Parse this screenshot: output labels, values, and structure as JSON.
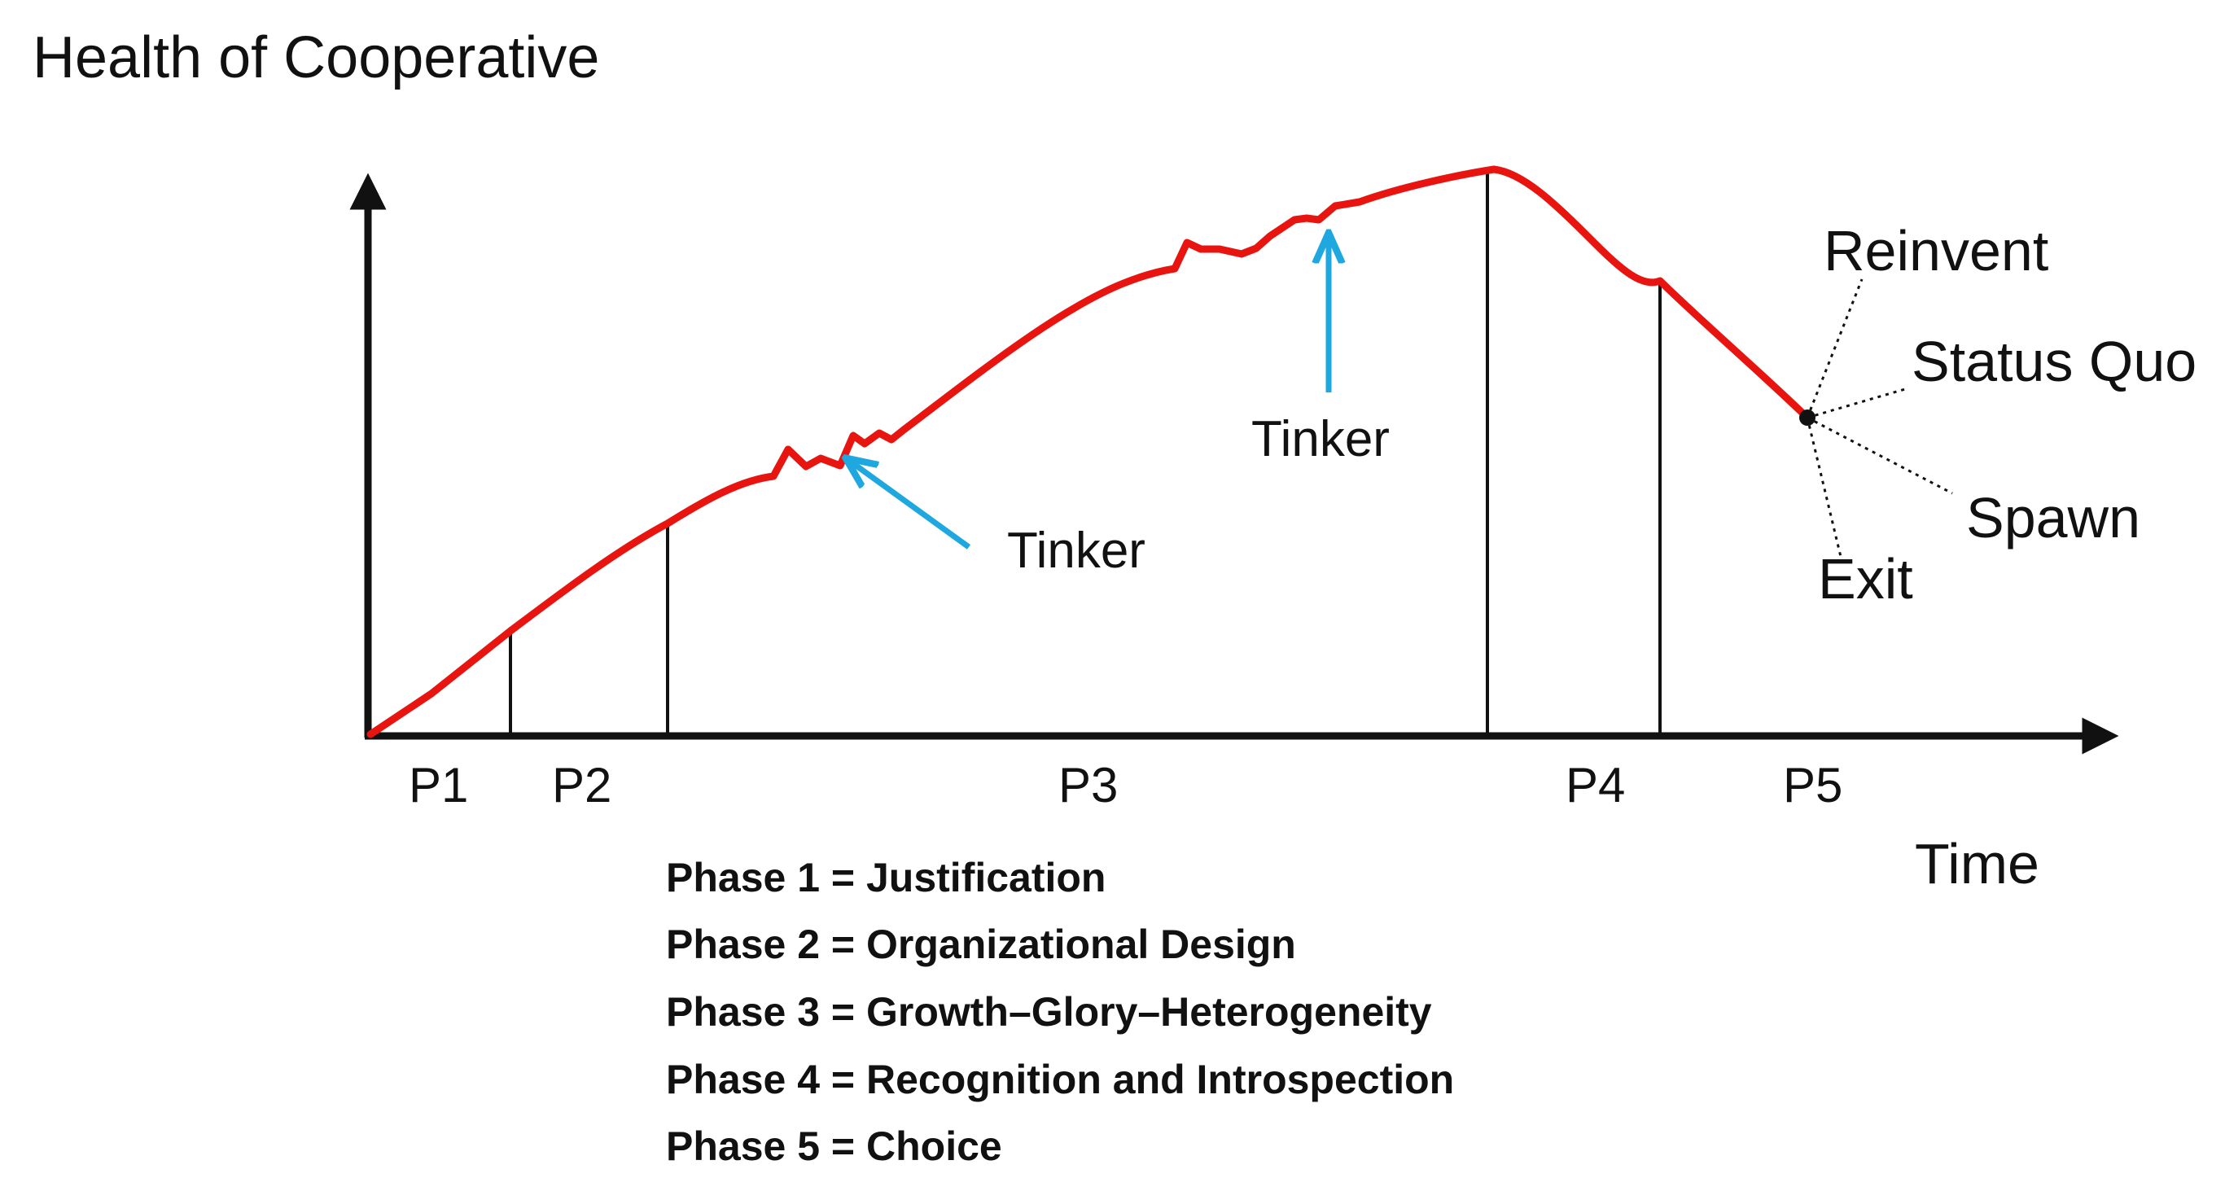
{
  "title": "Health of Cooperative",
  "x_axis_label": "Time",
  "phases": [
    {
      "label": "P1"
    },
    {
      "label": "P2"
    },
    {
      "label": "P3"
    },
    {
      "label": "P4"
    },
    {
      "label": "P5"
    }
  ],
  "annotations": {
    "tinker_1": "Tinker",
    "tinker_2": "Tinker"
  },
  "outcomes": {
    "reinvent": "Reinvent",
    "status_quo": "Status Quo",
    "spawn": "Spawn",
    "exit": "Exit"
  },
  "legend": [
    "Phase 1 = Justification",
    "Phase 2 = Organizational Design",
    "Phase 3 = Growth–Glory–Heterogeneity",
    "Phase 4 = Recognition and Introspection",
    "Phase 5 = Choice"
  ],
  "colors": {
    "curve": "#e8140f",
    "arrow": "#1fa8e0",
    "axis": "#111111"
  }
}
